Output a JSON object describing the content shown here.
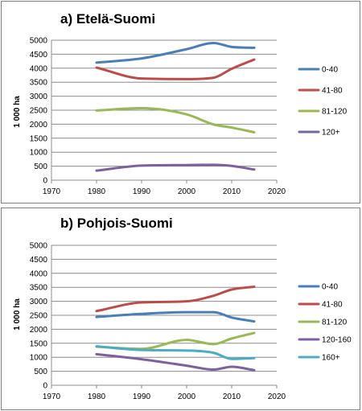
{
  "chart_data": [
    {
      "type": "line",
      "title": "a) Etelä-Suomi",
      "xlabel": "",
      "ylabel": "1 000 ha",
      "xlim": [
        1970,
        2020
      ],
      "ylim": [
        0,
        5000
      ],
      "xticks": [
        "1970",
        "1980",
        "1990",
        "2000",
        "2010",
        "2020"
      ],
      "yticks": [
        "0",
        "500",
        "1000",
        "1500",
        "2000",
        "2500",
        "3000",
        "3500",
        "4000",
        "4500",
        "5000"
      ],
      "grid": "horizontal",
      "legend_position": "right",
      "series": [
        {
          "name": "0-40",
          "color": "#4a7ebb",
          "x": [
            1980,
            1990,
            2000,
            2006,
            2010,
            2015
          ],
          "y": [
            4200,
            4350,
            4680,
            4900,
            4760,
            4730
          ]
        },
        {
          "name": "41-80",
          "color": "#be4b48",
          "x": [
            1980,
            1990,
            2000,
            2006,
            2010,
            2015
          ],
          "y": [
            4020,
            3630,
            3610,
            3660,
            3980,
            4310
          ]
        },
        {
          "name": "81-120",
          "color": "#98b954",
          "x": [
            1980,
            1990,
            2000,
            2006,
            2010,
            2015
          ],
          "y": [
            2490,
            2570,
            2350,
            1990,
            1880,
            1710
          ]
        },
        {
          "name": "120+",
          "color": "#7d60a0",
          "x": [
            1980,
            1990,
            2000,
            2006,
            2010,
            2015
          ],
          "y": [
            340,
            520,
            540,
            550,
            510,
            380
          ]
        }
      ]
    },
    {
      "type": "line",
      "title": "b) Pohjois-Suomi",
      "xlabel": "",
      "ylabel": "1 000 ha",
      "xlim": [
        1970,
        2020
      ],
      "ylim": [
        0,
        5000
      ],
      "xticks": [
        "1970",
        "1980",
        "1990",
        "2000",
        "2010",
        "2020"
      ],
      "yticks": [
        "0",
        "500",
        "1000",
        "1500",
        "2000",
        "2500",
        "3000",
        "3500",
        "4000",
        "4500",
        "5000"
      ],
      "grid": "horizontal",
      "legend_position": "right",
      "series": [
        {
          "name": "0-40",
          "color": "#4a7ebb",
          "x": [
            1980,
            1990,
            2000,
            2006,
            2010,
            2015
          ],
          "y": [
            2440,
            2550,
            2610,
            2610,
            2420,
            2280
          ]
        },
        {
          "name": "41-80",
          "color": "#be4b48",
          "x": [
            1980,
            1990,
            2000,
            2006,
            2010,
            2015
          ],
          "y": [
            2650,
            2960,
            3000,
            3200,
            3420,
            3520
          ]
        },
        {
          "name": "81-120",
          "color": "#98b954",
          "x": [
            1980,
            1990,
            2000,
            2006,
            2010,
            2015
          ],
          "y": [
            1380,
            1300,
            1620,
            1470,
            1670,
            1870
          ]
        },
        {
          "name": "120-160",
          "color": "#7d60a0",
          "x": [
            1980,
            1990,
            2000,
            2006,
            2010,
            2015
          ],
          "y": [
            1110,
            930,
            700,
            560,
            660,
            540
          ]
        },
        {
          "name": "160+",
          "color": "#4bacc6",
          "x": [
            1980,
            1990,
            2000,
            2006,
            2010,
            2015
          ],
          "y": [
            1390,
            1260,
            1240,
            1160,
            940,
            970
          ]
        }
      ]
    }
  ]
}
